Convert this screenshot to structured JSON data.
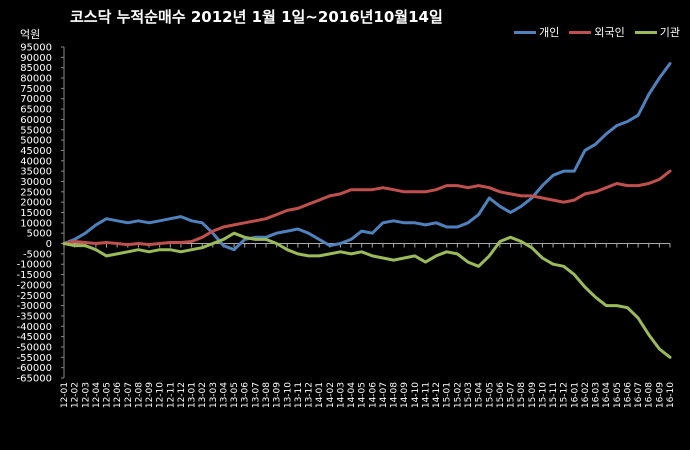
{
  "chart_data": {
    "type": "line",
    "title": "코스닥 누적순매수 2012년 1월 1일~2016년10월14일",
    "ylabel": "억원",
    "ylim": [
      -65000,
      95000
    ],
    "yticks": [
      95000,
      90000,
      85000,
      80000,
      75000,
      70000,
      65000,
      60000,
      55000,
      50000,
      45000,
      40000,
      35000,
      30000,
      25000,
      20000,
      15000,
      10000,
      5000,
      0,
      -5000,
      -10000,
      -15000,
      -20000,
      -25000,
      -30000,
      -35000,
      -40000,
      -45000,
      -50000,
      -55000,
      -60000,
      -65000
    ],
    "categories": [
      "12-01",
      "12-02",
      "12-03",
      "12-04",
      "12-05",
      "12-06",
      "12-07",
      "12-08",
      "12-09",
      "12-10",
      "12-11",
      "12-12",
      "13-01",
      "13-02",
      "13-03",
      "13-04",
      "13-05",
      "13-06",
      "13-07",
      "13-08",
      "13-09",
      "13-10",
      "13-11",
      "13-12",
      "14-01",
      "14-02",
      "14-03",
      "14-04",
      "14-05",
      "14-06",
      "14-07",
      "14-08",
      "14-09",
      "14-10",
      "14-11",
      "14-12",
      "15-01",
      "15-02",
      "15-03",
      "15-04",
      "15-05",
      "15-06",
      "15-07",
      "15-08",
      "15-09",
      "15-10",
      "15-11",
      "15-12",
      "16-01",
      "16-02",
      "16-03",
      "16-04",
      "16-05",
      "16-06",
      "16-07",
      "16-08",
      "16-09",
      "16-10"
    ],
    "legend_position": "top-right",
    "series": [
      {
        "name": "개인",
        "color": "#4f81bd",
        "values": [
          0,
          2000,
          5000,
          9000,
          12000,
          11000,
          10000,
          11000,
          10000,
          11000,
          12000,
          13000,
          11000,
          10000,
          5000,
          -1000,
          -3000,
          2000,
          3000,
          3000,
          5000,
          6000,
          7000,
          5000,
          2000,
          -1000,
          0,
          2000,
          6000,
          5000,
          10000,
          11000,
          10000,
          10000,
          9000,
          10000,
          8000,
          8000,
          10000,
          14000,
          22000,
          18000,
          15000,
          18000,
          22000,
          28000,
          33000,
          35000,
          35000,
          45000,
          48000,
          53000,
          57000,
          59000,
          62000,
          72000,
          80000,
          87000
        ]
      },
      {
        "name": "외국인",
        "color": "#c0504d",
        "values": [
          0,
          1000,
          500,
          0,
          500,
          0,
          -500,
          0,
          -500,
          0,
          500,
          500,
          1000,
          3000,
          6000,
          8000,
          9000,
          10000,
          11000,
          12000,
          14000,
          16000,
          17000,
          19000,
          21000,
          23000,
          24000,
          26000,
          26000,
          26000,
          27000,
          26000,
          25000,
          25000,
          25000,
          26000,
          28000,
          28000,
          27000,
          28000,
          27000,
          25000,
          24000,
          23000,
          23000,
          22000,
          21000,
          20000,
          21000,
          24000,
          25000,
          27000,
          29000,
          28000,
          28000,
          29000,
          31000,
          35000
        ]
      },
      {
        "name": "기관",
        "color": "#9bbb59",
        "values": [
          0,
          -1000,
          -1000,
          -3000,
          -6000,
          -5000,
          -4000,
          -3000,
          -4000,
          -3000,
          -3000,
          -4000,
          -3000,
          -2000,
          0,
          2000,
          5000,
          3000,
          2000,
          2000,
          0,
          -3000,
          -5000,
          -6000,
          -6000,
          -5000,
          -4000,
          -5000,
          -4000,
          -6000,
          -7000,
          -8000,
          -7000,
          -6000,
          -9000,
          -6000,
          -4000,
          -5000,
          -9000,
          -11000,
          -6000,
          1000,
          3000,
          1000,
          -2000,
          -7000,
          -10000,
          -11000,
          -15000,
          -21000,
          -26000,
          -30000,
          -30000,
          -31000,
          -36000,
          -44000,
          -51000,
          -55000
        ]
      }
    ]
  }
}
